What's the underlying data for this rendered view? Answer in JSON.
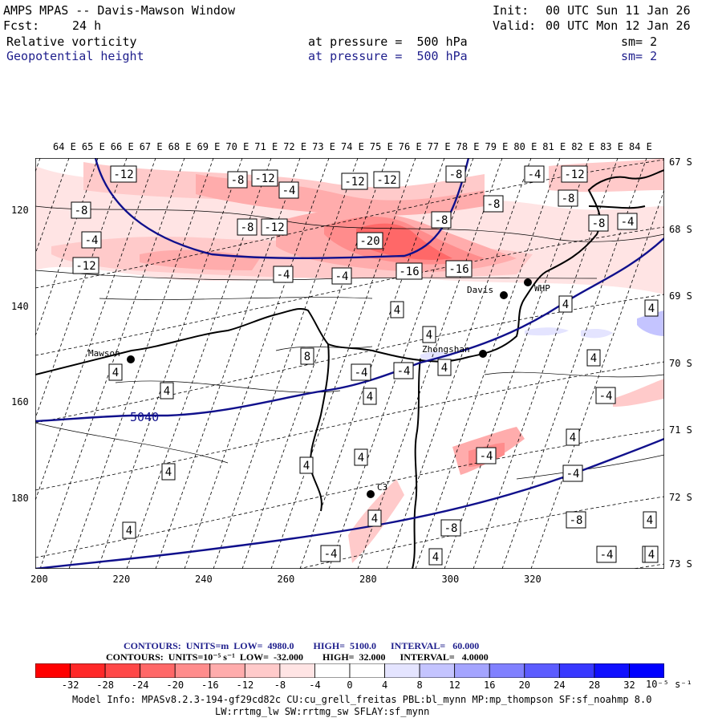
{
  "header": {
    "title": "AMPS MPAS -- Davis-Mawson Window",
    "fcst_label": "Fcst:",
    "fcst_value": "24 h",
    "init_label": "Init:",
    "init_value": "00 UTC Sun 11 Jan 26",
    "valid_label": "Valid:",
    "valid_value": "00 UTC Mon 12 Jan 26",
    "field1": "Relative vorticity",
    "field2": "Geopotential height",
    "pressure1": "at pressure =  500 hPa",
    "pressure2": "at pressure =  500 hPa",
    "sm1": "sm= 2",
    "sm2": "sm= 2"
  },
  "map": {
    "lon_labels": [
      "64 E",
      "65 E",
      "66 E",
      "67 E",
      "68 E",
      "69 E",
      "70 E",
      "71 E",
      "72 E",
      "73 E",
      "74 E",
      "75 E",
      "76 E",
      "77 E",
      "78 E",
      "79 E",
      "80 E",
      "81 E",
      "82 E",
      "83 E",
      "84 E"
    ],
    "lat_labels": [
      "67 S",
      "68 S",
      "69 S",
      "70 S",
      "71 S",
      "72 S",
      "73 S"
    ],
    "x_ticks": [
      "200",
      "220",
      "240",
      "260",
      "280",
      "300",
      "320"
    ],
    "y_ticks": [
      "120",
      "140",
      "160",
      "180"
    ],
    "stations": [
      "Mawson",
      "Davis",
      "Zhongshan",
      "WHP",
      "C3"
    ],
    "height_contour_label": "5040",
    "vort_labels": [
      "-12",
      "-8",
      "-12",
      "-4",
      "-12",
      "-8",
      "-12",
      "-4",
      "-12",
      "-8",
      "-8",
      "-8",
      "-4",
      "-8",
      "-4",
      "-20",
      "-12",
      "-8",
      "-8",
      "-16",
      "-16",
      "-4",
      "-12",
      "-4",
      "4",
      "4",
      "4",
      "4",
      "8",
      "-4",
      "4",
      "-4",
      "4",
      "5040",
      "4",
      "4",
      "4",
      "-4",
      "4",
      "4",
      "4",
      "4",
      "-4",
      "4",
      "-4",
      "-8",
      "4",
      "-8",
      "4",
      "4",
      "-4",
      "-4",
      "4",
      "4",
      "4",
      "4",
      "4"
    ],
    "colors": {
      "height": "#10108c",
      "coast": "#000000",
      "ice": "#000000"
    }
  },
  "contours_info": {
    "line1": "CONTOURS:  UNITS=m  LOW=  4980.0        HIGH=  5100.0      INTERVAL=   60.000",
    "line2": "CONTOURS:  UNITS=10⁻⁵ s⁻¹  LOW=  -32.000        HIGH=  32.000      INTERVAL=   4.0000"
  },
  "colorbar": {
    "labels": [
      "-32",
      "-28",
      "-24",
      "-20",
      "-16",
      "-12",
      "-8",
      "-4",
      "0",
      "4",
      "8",
      "12",
      "16",
      "20",
      "24",
      "28",
      "32"
    ],
    "units": "10⁻⁵ s⁻¹",
    "colors": [
      "#ff0000",
      "#ff2828",
      "#ff4848",
      "#ff6868",
      "#ff8c8c",
      "#ffacac",
      "#ffcaca",
      "#ffe4e4",
      "#ffffff",
      "#ffffff",
      "#e4e4ff",
      "#c4c4ff",
      "#a4a4ff",
      "#8080ff",
      "#5c5cff",
      "#3838ff",
      "#1010ff",
      "#0000ff"
    ]
  },
  "footer": {
    "line1": "Model Info: MPASv8.2.3-194-gf29cd82c CU:cu_grell_freitas PBL:bl_mynn MP:mp_thompson SF:sf_noahmp 8.0",
    "line2": "LW:rrtmg_lw SW:rrtmg_sw SFLAY:sf_mynn"
  }
}
